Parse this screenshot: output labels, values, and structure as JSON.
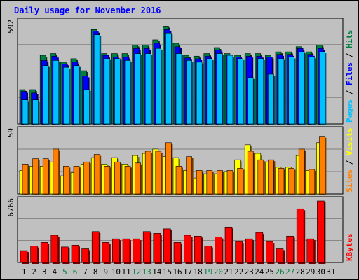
{
  "chart_data": {
    "type": "bar",
    "title": "Daily usage for November 2016",
    "days": [
      "1",
      "2",
      "3",
      "4",
      "5",
      "6",
      "7",
      "8",
      "9",
      "10",
      "11",
      "12",
      "13",
      "14",
      "15",
      "16",
      "17",
      "18",
      "19",
      "20",
      "21",
      "22",
      "23",
      "24",
      "25",
      "26",
      "27",
      "28",
      "29",
      "30",
      "31"
    ],
    "weekend_days": [
      "5",
      "6",
      "12",
      "13",
      "19",
      "20",
      "26",
      "27"
    ],
    "panels": [
      {
        "ymax_label": "592",
        "ymax": 592,
        "legend": [
          {
            "label": "Hits",
            "color": "#008040"
          },
          {
            "label": "Files",
            "color": "#0000ff"
          },
          {
            "label": "Pages",
            "color": "#00c0ff"
          }
        ],
        "series": {
          "Hits": [
            200,
            200,
            400,
            410,
            360,
            380,
            310,
            550,
            410,
            410,
            410,
            460,
            460,
            490,
            570,
            470,
            400,
            395,
            410,
            445,
            410,
            400,
            410,
            410,
            400,
            420,
            420,
            450,
            420,
            460
          ],
          "Files": [
            190,
            180,
            370,
            395,
            350,
            360,
            280,
            540,
            400,
            390,
            390,
            440,
            440,
            470,
            550,
            450,
            385,
            380,
            395,
            430,
            400,
            390,
            395,
            395,
            390,
            405,
            405,
            440,
            405,
            440
          ],
          "Pages": [
            140,
            140,
            340,
            370,
            330,
            340,
            200,
            520,
            380,
            380,
            370,
            410,
            410,
            440,
            530,
            410,
            370,
            360,
            380,
            410,
            400,
            380,
            270,
            380,
            290,
            380,
            390,
            420,
            390,
            420
          ]
        }
      },
      {
        "ymax_label": "59",
        "ymax": 59,
        "legend": [
          {
            "label": "Visits",
            "color": "#ffff00"
          },
          {
            "label": "Sites",
            "color": "#ff8000"
          }
        ],
        "series": {
          "Visits": [
            22,
            26,
            26,
            30,
            17,
            20,
            28,
            34,
            28,
            34,
            28,
            36,
            38,
            42,
            35,
            34,
            22,
            15,
            19,
            19,
            21,
            32,
            46,
            38,
            30,
            25,
            25,
            36,
            22,
            48
          ],
          "Sites": [
            28,
            33,
            33,
            42,
            26,
            26,
            30,
            37,
            26,
            30,
            26,
            29,
            40,
            40,
            48,
            26,
            35,
            22,
            22,
            22,
            22,
            24,
            40,
            32,
            32,
            24,
            24,
            42,
            23,
            54
          ]
        }
      },
      {
        "ymax_label": "6766",
        "ymax": 6766,
        "legend": [
          {
            "label": "KBytes",
            "color": "#ff0000"
          }
        ],
        "series": {
          "KBytes": [
            1300,
            1800,
            2200,
            3000,
            1700,
            1900,
            1500,
            3400,
            2200,
            2600,
            2600,
            2600,
            3400,
            3200,
            3700,
            2200,
            3000,
            2900,
            1800,
            2800,
            3900,
            2300,
            2600,
            3300,
            2300,
            1500,
            2900,
            5900,
            2600,
            6766
          ]
        }
      }
    ]
  }
}
